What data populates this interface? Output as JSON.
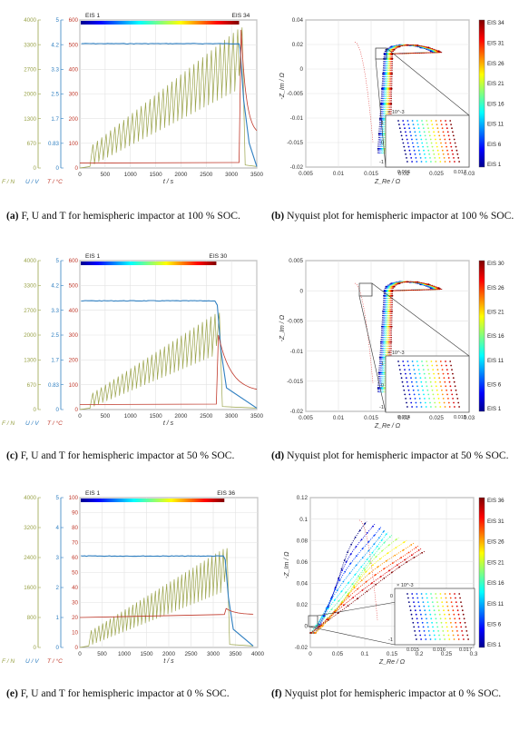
{
  "colors": {
    "force": "#9aa34a",
    "voltage": "#2f7fc1",
    "temp": "#c0392b",
    "axis": "#555555",
    "grid": "#e2e2e2"
  },
  "captions": [
    {
      "label": "(a)",
      "text": "F, U and T for hemispheric impactor at 100 % SOC."
    },
    {
      "label": "(b)",
      "text": "Nyquist plot for hemispheric impactor at 100 % SOC."
    },
    {
      "label": "(c)",
      "text": "F, U and T for hemispheric impactor at 50 % SOC."
    },
    {
      "label": "(d)",
      "text": "Nyquist plot for hemispheric impactor at 50 % SOC."
    },
    {
      "label": "(e)",
      "text": "F, U and T for hemispheric impactor at 0 % SOC."
    },
    {
      "label": "(f)",
      "text": "Nyquist plot for hemispheric impactor at 0 % SOC."
    }
  ],
  "chart_data": [
    {
      "id": "a",
      "type": "line",
      "xlabel": "t / s",
      "xlim": [
        0,
        3500
      ],
      "xticks": [
        0,
        500,
        1000,
        1500,
        2000,
        2500,
        3000,
        3500
      ],
      "y_force": {
        "label": "F / N",
        "ticks": [
          "0",
          "670",
          "1300",
          "2000",
          "2700",
          "3300",
          "4000"
        ]
      },
      "y_voltage": {
        "label": "U / V",
        "ticks": [
          "0",
          "0.83",
          "1.7",
          "2.5",
          "3.3",
          "4.2",
          "5"
        ]
      },
      "y_temp": {
        "label": "T / °C",
        "ticks": [
          "0",
          "100",
          "200",
          "300",
          "400",
          "500",
          "600"
        ]
      },
      "eis_start": "EIS 1",
      "eis_end": "EIS 34",
      "n_pulses": 34,
      "failure_time": 3150,
      "final_time": 3500,
      "voltage_value": 4.2,
      "temp_start": 20,
      "temp_peak": 560,
      "temp_end": 130,
      "force_peak_N": 3800
    },
    {
      "id": "b",
      "type": "scatter",
      "xlabel": "Z_Re / Ω",
      "ylabel": "-Z_Im / Ω",
      "xlim": [
        0.005,
        0.03
      ],
      "ylim": [
        -0.02,
        0.05
      ],
      "xticks": [
        "0.005",
        "0.01",
        "0.015",
        "0.02",
        "0.025",
        "0.03"
      ],
      "yticks": [
        "0.04",
        "0.02",
        "0",
        "-0.005",
        "-0.01",
        "-0.015",
        "-0.02"
      ],
      "colorbar": [
        "EIS 34",
        "EIS 31",
        "EIS 26",
        "EIS 21",
        "EIS 16",
        "EIS 11",
        "EIS 6",
        "EIS 1"
      ],
      "inset": {
        "scale": "× 10^-3",
        "xticks": [
          "0.016",
          "0.017"
        ],
        "yticks": [
          "1",
          "0",
          "-1"
        ]
      }
    },
    {
      "id": "c",
      "type": "line",
      "xlabel": "t / s",
      "xlim": [
        0,
        3500
      ],
      "xticks": [
        0,
        500,
        1000,
        1500,
        2000,
        2500,
        3000,
        3500
      ],
      "y_force": {
        "label": "F / N",
        "ticks": [
          "0",
          "670",
          "1300",
          "2000",
          "2700",
          "3300",
          "4000"
        ]
      },
      "y_voltage": {
        "label": "U / V",
        "ticks": [
          "0",
          "0.83",
          "1.7",
          "2.5",
          "3.3",
          "4.2",
          "5"
        ]
      },
      "y_temp": {
        "label": "T / °C",
        "ticks": [
          "0",
          "100",
          "200",
          "300",
          "400",
          "500",
          "600"
        ]
      },
      "eis_start": "EIS 1",
      "eis_end": "EIS 30",
      "n_pulses": 30,
      "failure_time": 2700,
      "final_time": 3500,
      "voltage_value": 3.65,
      "temp_start": 20,
      "temp_peak": 300,
      "temp_end": 70,
      "force_peak_N": 2600
    },
    {
      "id": "d",
      "type": "scatter",
      "xlabel": "Z_Re / Ω",
      "ylabel": "-Z_Im / Ω",
      "xlim": [
        0.005,
        0.03
      ],
      "ylim": [
        -0.02,
        0.005
      ],
      "xticks": [
        "0.005",
        "0.01",
        "0.015",
        "0.02",
        "0.025",
        "0.03"
      ],
      "yticks": [
        "0.005",
        "0",
        "-0.005",
        "-0.01",
        "-0.015",
        "-0.02"
      ],
      "colorbar": [
        "EIS 30",
        "EIS 26",
        "EIS 21",
        "EIS 16",
        "EIS 11",
        "EIS 6",
        "EIS 1"
      ],
      "inset": {
        "scale": "× 10^-3",
        "xticks": [
          "0.014",
          "0.015"
        ],
        "yticks": [
          "1",
          "0",
          "-1"
        ]
      }
    },
    {
      "id": "e",
      "type": "line",
      "xlabel": "t / s",
      "xlim": [
        0,
        4000
      ],
      "xticks": [
        0,
        500,
        1000,
        1500,
        2000,
        2500,
        3000,
        3500,
        4000
      ],
      "y_force": {
        "label": "F / N",
        "ticks": [
          "0",
          "800",
          "1600",
          "2400",
          "3200",
          "4000"
        ]
      },
      "y_voltage": {
        "label": "U / V",
        "ticks": [
          "0",
          "1",
          "2",
          "3",
          "4",
          "5"
        ]
      },
      "y_temp": {
        "label": "T / °C",
        "ticks": [
          "0",
          "10",
          "20",
          "30",
          "40",
          "50",
          "60",
          "70",
          "80",
          "90",
          "100"
        ]
      },
      "eis_start": "EIS 1",
      "eis_end": "EIS 36",
      "n_pulses": 36,
      "failure_time": 3250,
      "final_time": 3900,
      "voltage_value": 3.05,
      "temp_start": 20,
      "temp_peak": 26,
      "temp_end": 22,
      "force_peak_N": 2650
    },
    {
      "id": "f",
      "type": "scatter",
      "xlabel": "Z_Re / Ω",
      "ylabel": "-Z_Im / Ω",
      "xlim": [
        0,
        0.3
      ],
      "ylim": [
        -0.02,
        0.12
      ],
      "xticks": [
        "0",
        "0.05",
        "0.1",
        "0.15",
        "0.2",
        "0.25",
        "0.3"
      ],
      "yticks": [
        "0.12",
        "0.1",
        "0.08",
        "0.06",
        "0.04",
        "0.02",
        "0",
        "-0.02"
      ],
      "colorbar": [
        "EIS 36",
        "EIS 31",
        "EIS 26",
        "EIS 21",
        "EIS 16",
        "EIS 11",
        "EIS 6",
        "EIS 1"
      ],
      "inset": {
        "scale": "× 10^-3",
        "xticks": [
          "0.015",
          "0.016",
          "0.017"
        ],
        "yticks": [
          "0",
          "-1"
        ]
      }
    }
  ]
}
